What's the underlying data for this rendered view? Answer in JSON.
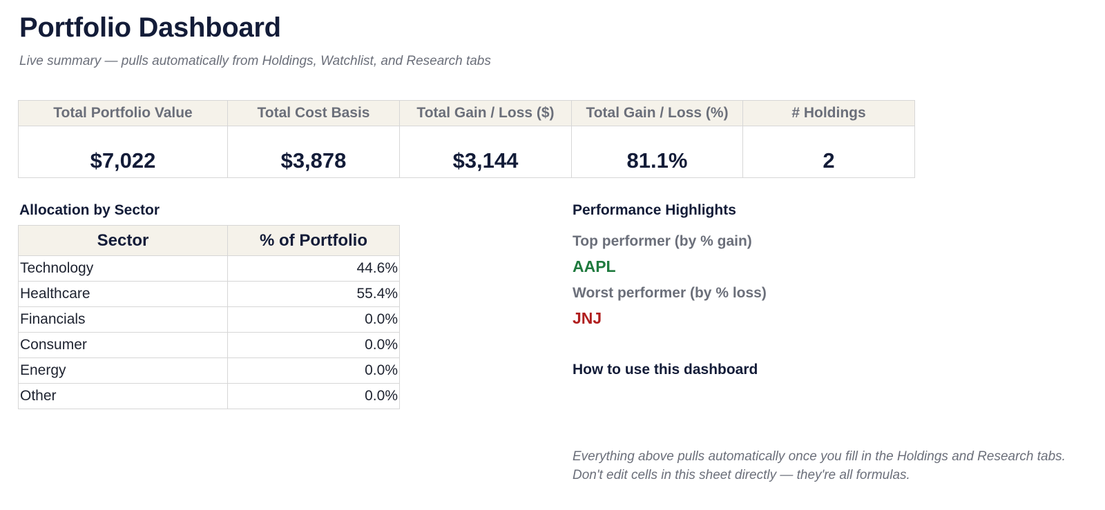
{
  "header": {
    "title": "Portfolio Dashboard",
    "subtitle": "Live summary — pulls automatically from Holdings, Watchlist, and Research tabs"
  },
  "kpis": [
    {
      "label": "Total Portfolio Value",
      "value": "$7,022"
    },
    {
      "label": "Total Cost Basis",
      "value": "$3,878"
    },
    {
      "label": "Total Gain / Loss ($)",
      "value": "$3,144"
    },
    {
      "label": "Total Gain / Loss (%)",
      "value": "81.1%"
    },
    {
      "label": "# Holdings",
      "value": "2"
    }
  ],
  "allocation": {
    "title": "Allocation by Sector",
    "columns": [
      "Sector",
      "% of Portfolio"
    ],
    "rows": [
      {
        "sector": "Technology",
        "pct": "44.6%"
      },
      {
        "sector": "Healthcare",
        "pct": "55.4%"
      },
      {
        "sector": "Financials",
        "pct": "0.0%"
      },
      {
        "sector": "Consumer",
        "pct": "0.0%"
      },
      {
        "sector": "Energy",
        "pct": "0.0%"
      },
      {
        "sector": "Other",
        "pct": "0.0%"
      }
    ]
  },
  "performance": {
    "title": "Performance Highlights",
    "top_label": "Top performer (by % gain)",
    "top_ticker": "AAPL",
    "worst_label": "Worst performer (by % loss)",
    "worst_ticker": "JNJ"
  },
  "howto": {
    "title": "How to use this dashboard",
    "note": "Everything above pulls automatically once you fill in the Holdings and Research tabs. Don't edit cells in this sheet directly — they're all formulas."
  },
  "colors": {
    "header_fill": "#f5f2ea",
    "positive": "#1f7a3e",
    "negative": "#b01e1e",
    "navy": "#131c38"
  }
}
